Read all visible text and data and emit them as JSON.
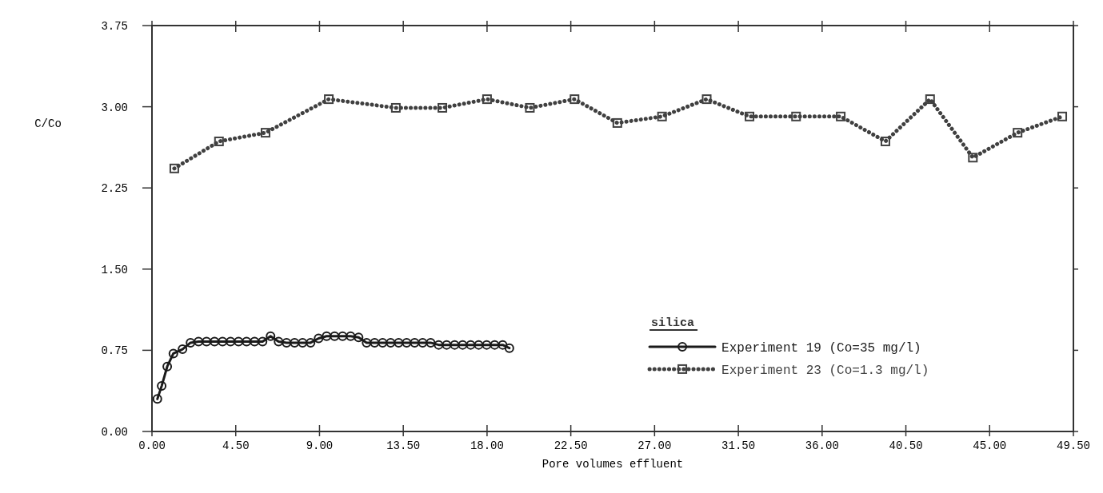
{
  "chart_data": {
    "type": "line",
    "xlabel": "Pore volumes effluent",
    "ylabel": "C/Co",
    "legend_title": "silica",
    "legend": "bottom right",
    "grid": false,
    "xlim": [
      0,
      49.5
    ],
    "ylim": [
      0,
      3.75
    ],
    "xticks": [
      {
        "value": 0,
        "label": "0.00"
      },
      {
        "value": 4.5,
        "label": "4.50"
      },
      {
        "value": 9,
        "label": "9.00"
      },
      {
        "value": 13.5,
        "label": "13.50"
      },
      {
        "value": 18,
        "label": "18.00"
      },
      {
        "value": 22.5,
        "label": "22.50"
      },
      {
        "value": 27,
        "label": "27.00"
      },
      {
        "value": 31.5,
        "label": "31.50"
      },
      {
        "value": 36,
        "label": "36.00"
      },
      {
        "value": 40.5,
        "label": "40.50"
      },
      {
        "value": 45,
        "label": "45.00"
      },
      {
        "value": 49.5,
        "label": "49.50"
      }
    ],
    "yticks": [
      {
        "value": 0,
        "label": "0.00"
      },
      0.75,
      {
        "value": 1.5,
        "label": "1.50"
      },
      2.25,
      {
        "value": 3,
        "label": "3.00"
      },
      3.75
    ],
    "series": [
      {
        "name": "Experiment 19 (Co=35 mg/l)",
        "color": "#1a1a1a",
        "marker": "circle",
        "line_style": "solid",
        "x": [
          0.29,
          0.52,
          0.82,
          1.15,
          1.64,
          2.07,
          2.5,
          2.93,
          3.36,
          3.79,
          4.22,
          4.65,
          5.08,
          5.51,
          5.94,
          6.37,
          6.8,
          7.23,
          7.66,
          8.09,
          8.52,
          8.95,
          9.38,
          9.81,
          10.24,
          10.67,
          11.1,
          11.53,
          11.96,
          12.39,
          12.82,
          13.25,
          13.68,
          14.11,
          14.54,
          14.97,
          15.4,
          15.83,
          16.26,
          16.69,
          17.12,
          17.55,
          17.98,
          18.41,
          18.84,
          19.2
        ],
        "values": [
          0.3,
          0.42,
          0.6,
          0.72,
          0.76,
          0.82,
          0.83,
          0.83,
          0.83,
          0.83,
          0.83,
          0.83,
          0.83,
          0.83,
          0.83,
          0.88,
          0.83,
          0.82,
          0.82,
          0.82,
          0.82,
          0.86,
          0.88,
          0.88,
          0.88,
          0.88,
          0.87,
          0.82,
          0.82,
          0.82,
          0.82,
          0.82,
          0.82,
          0.82,
          0.82,
          0.82,
          0.8,
          0.8,
          0.8,
          0.8,
          0.8,
          0.8,
          0.8,
          0.8,
          0.8,
          0.77
        ]
      },
      {
        "name": "Experiment 23 (Co=1.3 mg/l)",
        "color": "#404040",
        "marker": "square",
        "line_style": "dotted",
        "x": [
          1.2,
          3.6,
          6.1,
          9.5,
          13.1,
          15.6,
          18.0,
          20.3,
          22.7,
          25.0,
          27.4,
          29.8,
          32.1,
          34.6,
          37.0,
          39.4,
          41.8,
          44.1,
          46.5,
          48.9
        ],
        "values": [
          2.43,
          2.68,
          2.76,
          3.07,
          2.99,
          2.99,
          3.07,
          2.99,
          3.07,
          2.85,
          2.91,
          3.07,
          2.91,
          2.91,
          2.91,
          2.68,
          3.07,
          2.53,
          2.76,
          2.91
        ]
      }
    ]
  }
}
